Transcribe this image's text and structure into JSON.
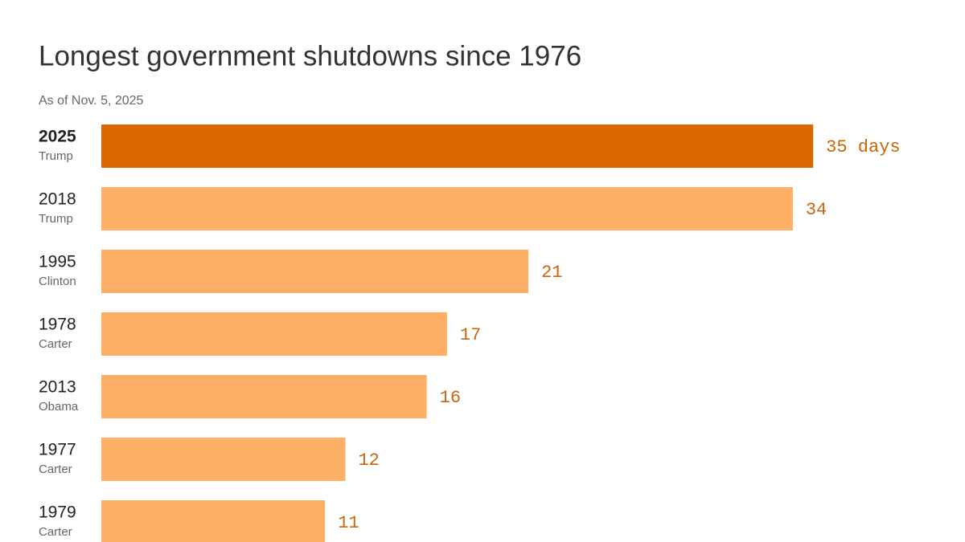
{
  "chart_data": {
    "type": "hbar",
    "title": "Longest government shutdowns since 1976",
    "subtitle": "As of Nov. 5, 2025",
    "categories": [
      "2025",
      "2018",
      "1995",
      "1978",
      "2013",
      "1977",
      "1979"
    ],
    "presidents": [
      "Trump",
      "Trump",
      "Clinton",
      "Carter",
      "Obama",
      "Carter",
      "Carter"
    ],
    "values": [
      35,
      34,
      21,
      17,
      16,
      12,
      11
    ],
    "value_labels": [
      "35 days",
      "34",
      "21",
      "17",
      "16",
      "12",
      "11"
    ],
    "colors": [
      "#d96800",
      "#fdb065",
      "#fdb065",
      "#fdb065",
      "#fdb065",
      "#fdb065",
      "#fdb065"
    ],
    "label_color": "#c8660c"
  }
}
